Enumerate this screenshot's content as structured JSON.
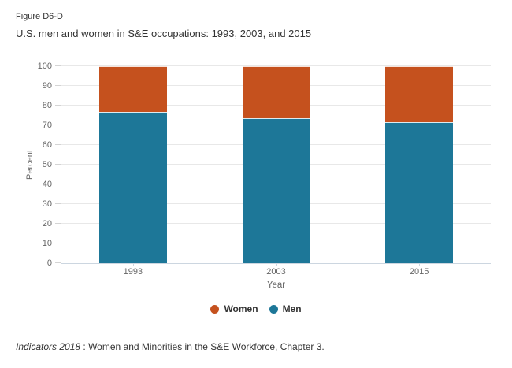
{
  "header": {
    "figure_label": "Figure D6-D",
    "title": "U.S. men and women in S&E occupations: 1993, 2003, and 2015"
  },
  "chart_data": {
    "type": "bar",
    "stacked": true,
    "title": "U.S. men and women in S&E occupations: 1993, 2003, and 2015",
    "categories": [
      "1993",
      "2003",
      "2015"
    ],
    "series": [
      {
        "name": "Women",
        "color": "#c5511e",
        "values": [
          23,
          26.5,
          28.5
        ]
      },
      {
        "name": "Men",
        "color": "#1d7798",
        "values": [
          77,
          73.5,
          71.5
        ]
      }
    ],
    "stack_bottom_to_top": [
      "Men",
      "Women"
    ],
    "legend": [
      "Women",
      "Men"
    ],
    "legend_position": "bottom-center",
    "xlabel": "Year",
    "ylabel": "Percent",
    "ylim": [
      0,
      100
    ],
    "ytick_step": 10,
    "grid": true
  },
  "footer": {
    "source_italic": "Indicators 2018",
    "source_text": " : Women and Minorities in the S&E Workforce, Chapter 3."
  },
  "colors": {
    "women": "#c5511e",
    "men": "#1d7798",
    "axis_line": "#ccd6e0",
    "gridline": "#e8e8e8",
    "tick_label": "#666666",
    "title_text": "#333333"
  }
}
